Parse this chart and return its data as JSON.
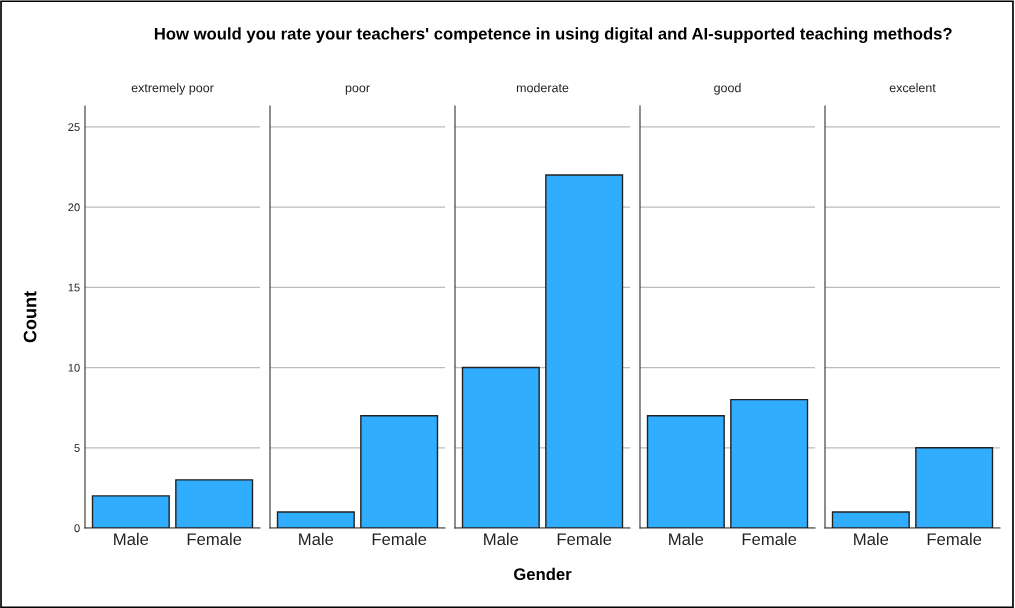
{
  "chart_data": [
    {
      "type": "bar",
      "title": "extremely poor",
      "ylabel": "Count",
      "annotations": [
        "How would you rate your teachers' competence in using digital and AI-supported teaching methods?"
      ],
      "categories": [
        "Male",
        "Female"
      ],
      "values": [
        2,
        3
      ],
      "color": "#31adff",
      "ylim": [
        0,
        26.3
      ],
      "yticks": [
        0,
        5,
        10,
        15,
        20,
        25
      ],
      "grid": "y"
    },
    {
      "type": "bar",
      "title": "poor",
      "categories": [
        "Male",
        "Female"
      ],
      "values": [
        1,
        7
      ],
      "color": "#31adff",
      "ylim": [
        0,
        26.3
      ],
      "yticks": [
        0,
        5,
        10,
        15,
        20,
        25
      ],
      "grid": "y",
      "tick_labels": "x"
    },
    {
      "type": "bar",
      "title": "moderate",
      "xlabel": "Gender",
      "categories": [
        "Male",
        "Female"
      ],
      "values": [
        10,
        22
      ],
      "color": "#31adff",
      "ylim": [
        0,
        26.3
      ],
      "yticks": [
        0,
        5,
        10,
        15,
        20,
        25
      ],
      "grid": "y",
      "tick_labels": "x"
    },
    {
      "type": "bar",
      "title": "good",
      "categories": [
        "Male",
        "Female"
      ],
      "values": [
        7,
        8
      ],
      "color": "#31adff",
      "ylim": [
        0,
        26.3
      ],
      "yticks": [
        0,
        5,
        10,
        15,
        20,
        25
      ],
      "grid": "y",
      "tick_labels": "x"
    },
    {
      "type": "bar",
      "title": "excelent",
      "categories": [
        "Male",
        "Female"
      ],
      "values": [
        1,
        5
      ],
      "color": "#31adff",
      "ylim": [
        0,
        26.3
      ],
      "yticks": [
        0,
        5,
        10,
        15,
        20,
        25
      ],
      "grid": "y",
      "tick_labels": "x"
    }
  ]
}
